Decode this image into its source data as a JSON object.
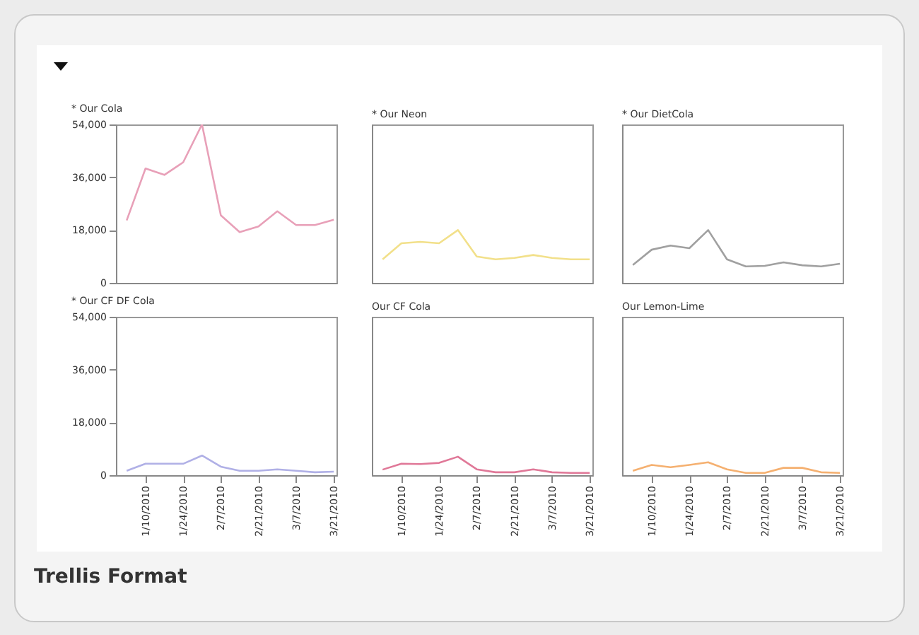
{
  "chart_data": [
    {
      "type": "line",
      "title": "* Our Cola",
      "x": [
        "2010-01-03",
        "2010-01-10",
        "2010-01-17",
        "2010-01-24",
        "2010-01-31",
        "2010-02-07",
        "2010-02-14",
        "2010-02-21",
        "2010-02-28",
        "2010-03-07",
        "2010-03-14",
        "2010-03-21"
      ],
      "series": [
        {
          "color": "#e8a0b8",
          "values": [
            21300,
            39000,
            36800,
            41100,
            54000,
            23000,
            17300,
            19200,
            24400,
            19700,
            19700,
            21500
          ]
        }
      ],
      "xlim": [
        "2009-12-30",
        "2010-03-22"
      ],
      "ylim": [
        0,
        54000
      ],
      "yticks": [
        {
          "value": 0,
          "label": "0"
        },
        {
          "value": 18000,
          "label": "18,000"
        },
        {
          "value": 36000,
          "label": "36,000"
        },
        {
          "value": 54000,
          "label": "54,000"
        }
      ],
      "tick_labels": "y"
    },
    {
      "type": "line",
      "title": "* Our Neon",
      "x": [
        "2010-01-03",
        "2010-01-10",
        "2010-01-17",
        "2010-01-24",
        "2010-01-31",
        "2010-02-07",
        "2010-02-14",
        "2010-02-21",
        "2010-02-28",
        "2010-03-07",
        "2010-03-14",
        "2010-03-21"
      ],
      "series": [
        {
          "color": "#f2e08a",
          "values": [
            8000,
            13500,
            14000,
            13500,
            18000,
            9000,
            8000,
            8500,
            9500,
            8500,
            8000,
            8000
          ]
        }
      ],
      "xlim": [
        "2009-12-30",
        "2010-03-22"
      ],
      "ylim": [
        0,
        54000
      ],
      "tick_labels": false
    },
    {
      "type": "line",
      "title": "* Our DietCola",
      "x": [
        "2010-01-03",
        "2010-01-10",
        "2010-01-17",
        "2010-01-24",
        "2010-01-31",
        "2010-02-07",
        "2010-02-14",
        "2010-02-21",
        "2010-02-28",
        "2010-03-07",
        "2010-03-14",
        "2010-03-21"
      ],
      "series": [
        {
          "color": "#a0a0a0",
          "values": [
            6100,
            11300,
            12700,
            11800,
            18000,
            8000,
            5600,
            5800,
            7000,
            6000,
            5600,
            6500
          ]
        }
      ],
      "xlim": [
        "2009-12-30",
        "2010-03-22"
      ],
      "ylim": [
        0,
        54000
      ],
      "tick_labels": false
    },
    {
      "type": "line",
      "title": "* Our CF DF Cola",
      "x": [
        "2010-01-03",
        "2010-01-10",
        "2010-01-17",
        "2010-01-24",
        "2010-01-31",
        "2010-02-07",
        "2010-02-14",
        "2010-02-21",
        "2010-02-28",
        "2010-03-07",
        "2010-03-14",
        "2010-03-21"
      ],
      "series": [
        {
          "color": "#b0b0e6",
          "values": [
            1500,
            3900,
            3900,
            3900,
            6700,
            2900,
            1500,
            1500,
            2000,
            1500,
            1000,
            1200
          ]
        }
      ],
      "xlim": [
        "2009-12-30",
        "2010-03-22"
      ],
      "xticks": [
        {
          "value": "2010-01-10",
          "label": "1/10/2010"
        },
        {
          "value": "2010-01-24",
          "label": "1/24/2010"
        },
        {
          "value": "2010-02-07",
          "label": "2/7/2010"
        },
        {
          "value": "2010-02-21",
          "label": "2/21/2010"
        },
        {
          "value": "2010-03-07",
          "label": "3/7/2010"
        },
        {
          "value": "2010-03-21",
          "label": "3/21/2010"
        }
      ],
      "ylim": [
        0,
        54000
      ],
      "yticks": [
        {
          "value": 0,
          "label": "0"
        },
        {
          "value": 18000,
          "label": "18,000"
        },
        {
          "value": 36000,
          "label": "36,000"
        },
        {
          "value": 54000,
          "label": "54,000"
        }
      ]
    },
    {
      "type": "line",
      "title": "Our CF Cola",
      "x": [
        "2010-01-03",
        "2010-01-10",
        "2010-01-17",
        "2010-01-24",
        "2010-01-31",
        "2010-02-07",
        "2010-02-14",
        "2010-02-21",
        "2010-02-28",
        "2010-03-07",
        "2010-03-14",
        "2010-03-21"
      ],
      "series": [
        {
          "color": "#e07898",
          "values": [
            1900,
            3900,
            3800,
            4200,
            6300,
            2000,
            1000,
            1000,
            2000,
            1000,
            800,
            800
          ]
        }
      ],
      "xlim": [
        "2009-12-30",
        "2010-03-22"
      ],
      "xticks": [
        {
          "value": "2010-01-10",
          "label": "1/10/2010"
        },
        {
          "value": "2010-01-24",
          "label": "1/24/2010"
        },
        {
          "value": "2010-02-07",
          "label": "2/7/2010"
        },
        {
          "value": "2010-02-21",
          "label": "2/21/2010"
        },
        {
          "value": "2010-03-07",
          "label": "3/7/2010"
        },
        {
          "value": "2010-03-21",
          "label": "3/21/2010"
        }
      ],
      "ylim": [
        0,
        54000
      ],
      "tick_labels": "x"
    },
    {
      "type": "line",
      "title": "Our Lemon-Lime",
      "x": [
        "2010-01-03",
        "2010-01-10",
        "2010-01-17",
        "2010-01-24",
        "2010-01-31",
        "2010-02-07",
        "2010-02-14",
        "2010-02-21",
        "2010-02-28",
        "2010-03-07",
        "2010-03-14",
        "2010-03-21"
      ],
      "series": [
        {
          "color": "#f5b070",
          "values": [
            1500,
            3500,
            2700,
            3500,
            4400,
            2000,
            800,
            800,
            2500,
            2500,
            1000,
            800
          ]
        }
      ],
      "xlim": [
        "2009-12-30",
        "2010-03-22"
      ],
      "xticks": [
        {
          "value": "2010-01-10",
          "label": "1/10/2010"
        },
        {
          "value": "2010-01-24",
          "label": "1/24/2010"
        },
        {
          "value": "2010-02-07",
          "label": "2/7/2010"
        },
        {
          "value": "2010-02-21",
          "label": "2/21/2010"
        },
        {
          "value": "2010-03-07",
          "label": "3/7/2010"
        },
        {
          "value": "2010-03-21",
          "label": "3/21/2010"
        }
      ],
      "ylim": [
        0,
        54000
      ],
      "tick_labels": "x",
      "annotations": [
        "Trellis Format"
      ]
    }
  ]
}
